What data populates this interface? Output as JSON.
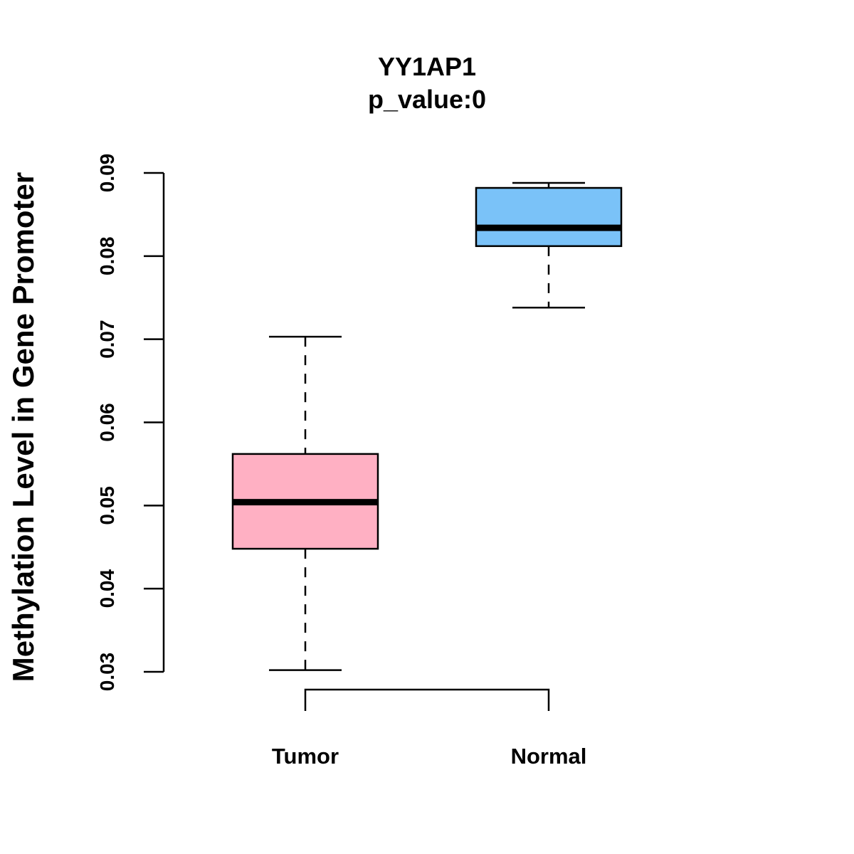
{
  "chart_data": {
    "type": "boxplot",
    "title": "YY1AP1",
    "subtitle": "p_value:0",
    "xlabel": "",
    "ylabel": "Methylation Level in Gene Promoter",
    "ylim": [
      0.03,
      0.09
    ],
    "yticks": [
      0.03,
      0.04,
      0.05,
      0.06,
      0.07,
      0.08,
      0.09
    ],
    "ytick_labels": [
      "0.03",
      "0.04",
      "0.05",
      "0.06",
      "0.07",
      "0.08",
      "0.09"
    ],
    "categories": [
      "Tumor",
      "Normal"
    ],
    "series": [
      {
        "name": "Tumor",
        "color": "#FFB0C3",
        "whisker_low": 0.0302,
        "q1": 0.0448,
        "median": 0.0504,
        "q3": 0.0562,
        "whisker_high": 0.0703
      },
      {
        "name": "Normal",
        "color": "#7AC2F8",
        "whisker_low": 0.0738,
        "q1": 0.0812,
        "median": 0.0834,
        "q3": 0.0882,
        "whisker_high": 0.0888
      }
    ],
    "comparison_bracket": [
      "Tumor",
      "Normal"
    ],
    "grid": false,
    "legend": "none"
  }
}
